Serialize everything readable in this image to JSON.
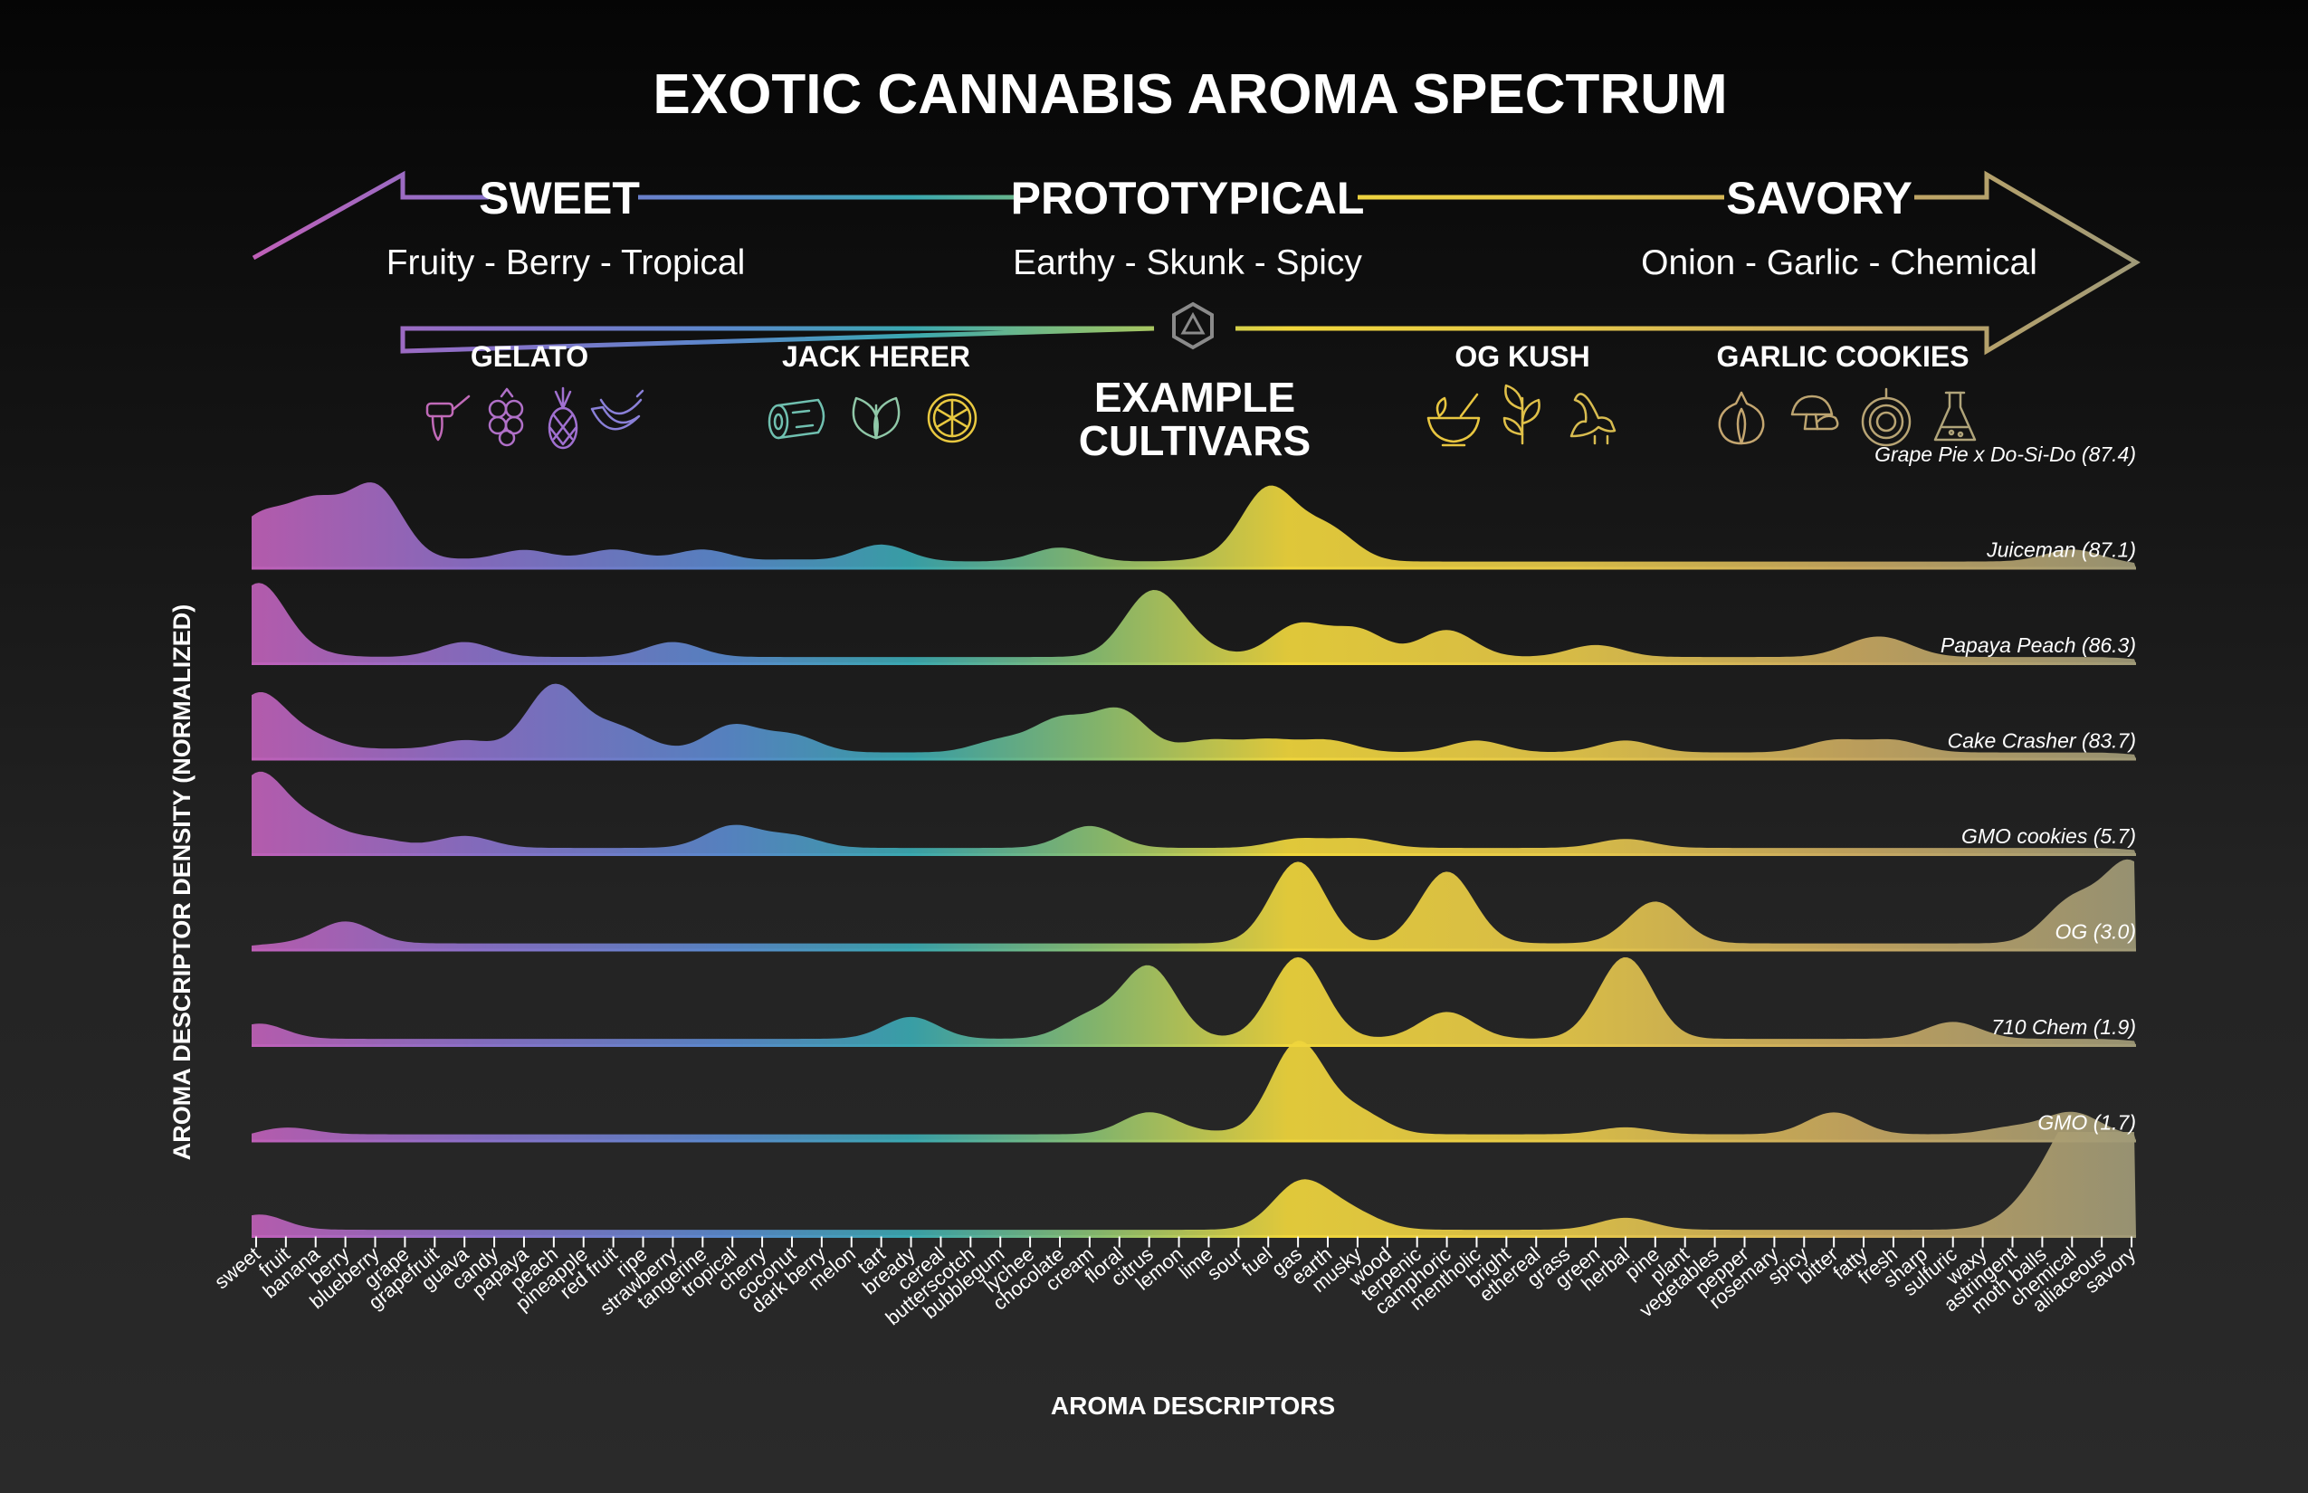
{
  "header": {
    "title": "EXOTIC CANNABIS AROMA SPECTRUM",
    "spectrum": [
      {
        "label": "SWEET",
        "sub": "Fruity - Berry - Tropical"
      },
      {
        "label": "PROTOTYPICAL",
        "sub": "Earthy - Skunk - Spicy"
      },
      {
        "label": "SAVORY",
        "sub": "Onion - Garlic - Chemical"
      }
    ],
    "cultivars_label_1": "EXAMPLE",
    "cultivars_label_2": "CULTIVARS",
    "cultivars": [
      {
        "name": "GELATO",
        "icons": [
          "honey-dipper-icon",
          "raspberry-icon",
          "pineapple-icon",
          "banana-icon"
        ],
        "color": "#b070c8"
      },
      {
        "name": "JACK HERER",
        "icons": [
          "wood-log-icon",
          "leaves-icon",
          "citrus-slice-icon"
        ],
        "color": "#7ec0a8"
      },
      {
        "name": "OG KUSH",
        "icons": [
          "mortar-pestle-icon",
          "herb-sprig-icon",
          "skunk-icon"
        ],
        "color": "#e8c640"
      },
      {
        "name": "GARLIC COOKIES",
        "icons": [
          "garlic-icon",
          "mushroom-icon",
          "onion-icon",
          "flask-icon"
        ],
        "color": "#b8a070"
      }
    ]
  },
  "chart_data": {
    "type": "area",
    "xlabel": "AROMA DESCRIPTORS",
    "ylabel": "AROMA DESCRIPTOR DENSITY (NORMALIZED)",
    "categories": [
      "sweet",
      "fruit",
      "banana",
      "berry",
      "blueberry",
      "grape",
      "grapefruit",
      "guava",
      "candy",
      "papaya",
      "peach",
      "pineapple",
      "red fruit",
      "ripe",
      "strawberry",
      "tangerine",
      "tropical",
      "cherry",
      "coconut",
      "dark berry",
      "melon",
      "tart",
      "bready",
      "cereal",
      "butterscotch",
      "bubblegum",
      "lychee",
      "chocolate",
      "cream",
      "floral",
      "citrus",
      "lemon",
      "lime",
      "sour",
      "fuel",
      "gas",
      "earth",
      "musky",
      "wood",
      "terpenic",
      "camphoric",
      "mentholic",
      "bright",
      "ethereal",
      "grass",
      "green",
      "herbal",
      "pine",
      "plant",
      "vegetables",
      "pepper",
      "rosemary",
      "spicy",
      "bitter",
      "fatty",
      "fresh",
      "sharp",
      "sulfuric",
      "waxy",
      "astringent",
      "moth balls",
      "chemical",
      "alliaceous",
      "savory"
    ],
    "series": [
      {
        "name": "Grape Pie x Do-Si-Do (87.4)",
        "values": [
          0.45,
          0.1,
          0.55,
          0.05,
          0.75,
          0.05,
          0.03,
          0.05,
          0.02,
          0.15,
          0.03,
          0.03,
          0.15,
          0.03,
          0.03,
          0.15,
          0.03,
          0.03,
          0.05,
          0.03,
          0.03,
          0.2,
          0.03,
          0.03,
          0.03,
          0.03,
          0.03,
          0.17,
          0.03,
          0.03,
          0.03,
          0.03,
          0.05,
          0.03,
          0.75,
          0.05,
          0.35,
          0.03,
          0.03,
          0.03,
          0.03,
          0.03,
          0.03,
          0.03,
          0.03,
          0.03,
          0.03,
          0.03,
          0.03,
          0.03,
          0.03,
          0.03,
          0.03,
          0.03,
          0.03,
          0.03,
          0.03,
          0.03,
          0.03,
          0.03,
          0.03,
          0.15,
          0.03,
          0.03
        ]
      },
      {
        "name": "Juiceman (87.1)",
        "values": [
          0.75,
          0.1,
          0.05,
          0.03,
          0.03,
          0.03,
          0.03,
          0.18,
          0.03,
          0.03,
          0.03,
          0.03,
          0.03,
          0.03,
          0.18,
          0.03,
          0.03,
          0.03,
          0.03,
          0.03,
          0.03,
          0.03,
          0.03,
          0.03,
          0.03,
          0.03,
          0.03,
          0.03,
          0.03,
          0.03,
          0.6,
          0.2,
          0.05,
          0.03,
          0.03,
          0.35,
          0.03,
          0.3,
          0.03,
          0.03,
          0.3,
          0.03,
          0.03,
          0.03,
          0.03,
          0.15,
          0.03,
          0.03,
          0.03,
          0.03,
          0.03,
          0.03,
          0.03,
          0.03,
          0.15,
          0.15,
          0.03,
          0.03,
          0.03,
          0.03,
          0.03,
          0.03,
          0.03,
          0.03
        ]
      },
      {
        "name": "Papaya Peach (86.3)",
        "values": [
          0.6,
          0.1,
          0.15,
          0.03,
          0.05,
          0.05,
          0.03,
          0.15,
          0.03,
          0.03,
          0.7,
          0.03,
          0.25,
          0.08,
          0.03,
          0.03,
          0.3,
          0.03,
          0.2,
          0.03,
          0.03,
          0.03,
          0.03,
          0.03,
          0.03,
          0.15,
          0.03,
          0.35,
          0.03,
          0.45,
          0.03,
          0.03,
          0.15,
          0.03,
          0.15,
          0.03,
          0.15,
          0.03,
          0.03,
          0.03,
          0.03,
          0.15,
          0.03,
          0.03,
          0.03,
          0.03,
          0.15,
          0.03,
          0.03,
          0.03,
          0.03,
          0.03,
          0.03,
          0.15,
          0.03,
          0.15,
          0.03,
          0.03,
          0.03,
          0.03,
          0.03,
          0.03,
          0.03,
          0.03
        ]
      },
      {
        "name": "Cake Crasher (83.7)",
        "values": [
          0.75,
          0.1,
          0.25,
          0.03,
          0.12,
          0.03,
          0.03,
          0.15,
          0.03,
          0.03,
          0.03,
          0.03,
          0.03,
          0.03,
          0.03,
          0.03,
          0.25,
          0.03,
          0.15,
          0.03,
          0.03,
          0.03,
          0.03,
          0.03,
          0.03,
          0.03,
          0.03,
          0.03,
          0.25,
          0.03,
          0.03,
          0.03,
          0.03,
          0.03,
          0.03,
          0.12,
          0.03,
          0.12,
          0.03,
          0.03,
          0.03,
          0.03,
          0.03,
          0.03,
          0.03,
          0.03,
          0.12,
          0.03,
          0.03,
          0.03,
          0.03,
          0.03,
          0.03,
          0.03,
          0.03,
          0.03,
          0.03,
          0.03,
          0.03,
          0.03,
          0.03,
          0.03,
          0.03,
          0.03
        ]
      },
      {
        "name": "GMO cookies (5.7)",
        "values": [
          0.03,
          0.03,
          0.03,
          0.25,
          0.03,
          0.03,
          0.03,
          0.03,
          0.03,
          0.03,
          0.03,
          0.03,
          0.03,
          0.03,
          0.03,
          0.03,
          0.03,
          0.03,
          0.03,
          0.03,
          0.03,
          0.03,
          0.03,
          0.03,
          0.03,
          0.03,
          0.03,
          0.03,
          0.03,
          0.03,
          0.03,
          0.03,
          0.03,
          0.03,
          0.03,
          0.85,
          0.03,
          0.03,
          0.03,
          0.03,
          0.75,
          0.03,
          0.03,
          0.03,
          0.03,
          0.03,
          0.03,
          0.45,
          0.03,
          0.03,
          0.03,
          0.03,
          0.03,
          0.03,
          0.03,
          0.03,
          0.03,
          0.03,
          0.03,
          0.03,
          0.03,
          0.45,
          0.03,
          0.85
        ]
      },
      {
        "name": "OG (3.0)",
        "values": [
          0.2,
          0.03,
          0.03,
          0.03,
          0.03,
          0.03,
          0.03,
          0.03,
          0.03,
          0.03,
          0.03,
          0.03,
          0.03,
          0.03,
          0.03,
          0.03,
          0.03,
          0.03,
          0.03,
          0.03,
          0.03,
          0.03,
          0.25,
          0.03,
          0.03,
          0.03,
          0.03,
          0.03,
          0.25,
          0.03,
          0.75,
          0.03,
          0.03,
          0.03,
          0.03,
          0.85,
          0.03,
          0.03,
          0.03,
          0.03,
          0.3,
          0.03,
          0.03,
          0.03,
          0.03,
          0.03,
          0.85,
          0.03,
          0.03,
          0.03,
          0.03,
          0.03,
          0.03,
          0.03,
          0.03,
          0.03,
          0.03,
          0.2,
          0.03,
          0.03,
          0.03,
          0.03,
          0.03,
          0.03
        ]
      },
      {
        "name": "710 Chem (1.9)",
        "values": [
          0.03,
          0.1,
          0.03,
          0.03,
          0.03,
          0.03,
          0.03,
          0.03,
          0.03,
          0.03,
          0.03,
          0.03,
          0.03,
          0.03,
          0.03,
          0.03,
          0.03,
          0.03,
          0.03,
          0.03,
          0.03,
          0.03,
          0.03,
          0.03,
          0.03,
          0.03,
          0.03,
          0.03,
          0.03,
          0.03,
          0.25,
          0.03,
          0.05,
          0.03,
          0.03,
          0.95,
          0.03,
          0.25,
          0.03,
          0.03,
          0.03,
          0.03,
          0.03,
          0.03,
          0.03,
          0.03,
          0.1,
          0.03,
          0.03,
          0.03,
          0.03,
          0.03,
          0.03,
          0.25,
          0.03,
          0.03,
          0.03,
          0.03,
          0.03,
          0.1,
          0.03,
          0.25,
          0.03,
          0.03
        ]
      },
      {
        "name": "GMO (1.7)",
        "values": [
          0.2,
          0.03,
          0.03,
          0.03,
          0.03,
          0.03,
          0.03,
          0.03,
          0.03,
          0.03,
          0.03,
          0.03,
          0.03,
          0.03,
          0.03,
          0.03,
          0.03,
          0.03,
          0.03,
          0.03,
          0.03,
          0.03,
          0.03,
          0.03,
          0.03,
          0.03,
          0.03,
          0.03,
          0.03,
          0.03,
          0.03,
          0.03,
          0.03,
          0.03,
          0.03,
          0.45,
          0.15,
          0.15,
          0.03,
          0.03,
          0.03,
          0.03,
          0.03,
          0.03,
          0.03,
          0.03,
          0.15,
          0.03,
          0.03,
          0.03,
          0.03,
          0.03,
          0.03,
          0.03,
          0.03,
          0.03,
          0.03,
          0.03,
          0.03,
          0.1,
          0.3,
          0.6,
          0.9,
          0.6
        ]
      }
    ],
    "gradient_colors": [
      "#c060b8",
      "#8a70c8",
      "#5a88cc",
      "#3aa8b0",
      "#8cc070",
      "#f0d63c",
      "#e6c84a",
      "#c8a860",
      "#a09a78"
    ],
    "grid": false,
    "legend": "per-row labels, right-aligned above each ridge"
  }
}
